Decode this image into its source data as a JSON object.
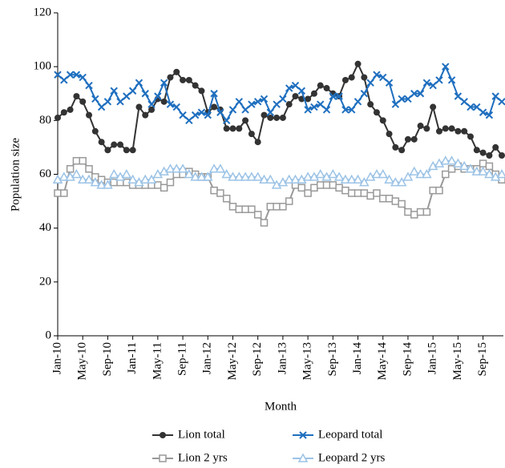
{
  "chart_data": {
    "type": "line",
    "x_label": "Month",
    "y_label": "Population size",
    "categories": [
      "Jan-10",
      null,
      null,
      null,
      "May-10",
      null,
      null,
      null,
      "Sep-10",
      null,
      null,
      null,
      "Jan-11",
      null,
      null,
      null,
      "May-11",
      null,
      null,
      null,
      "Sep-11",
      null,
      null,
      null,
      "Jan-12",
      null,
      null,
      null,
      "May-12",
      null,
      null,
      null,
      "Sep-12",
      null,
      null,
      null,
      "Jan-13",
      null,
      null,
      null,
      "May-13",
      null,
      null,
      null,
      "Sep-13",
      null,
      null,
      null,
      "Jan-14",
      null,
      null,
      null,
      "May-14",
      null,
      null,
      null,
      "Sep-14",
      null,
      null,
      null,
      "Jan-15",
      null,
      null,
      null,
      "May-15",
      null,
      null,
      null,
      "Sep-15",
      null,
      null,
      null
    ],
    "ylim": [
      0,
      120
    ],
    "yticks": [
      0,
      20,
      40,
      60,
      80,
      100,
      120
    ],
    "series": [
      {
        "name": "Lion total",
        "color": "#333333",
        "marker": "circle",
        "values": [
          81,
          83,
          84,
          89,
          87,
          82,
          76,
          72,
          69,
          71,
          71,
          69,
          69,
          85,
          82,
          84,
          88,
          87,
          96,
          98,
          95,
          95,
          93,
          91,
          83,
          85,
          84,
          77,
          77,
          77,
          80,
          75,
          72,
          82,
          81,
          81,
          81,
          86,
          89,
          88,
          88,
          90,
          93,
          92,
          90,
          89,
          95,
          96,
          101,
          96,
          86,
          83,
          80,
          75,
          70,
          69,
          73,
          73,
          78,
          77,
          85,
          76,
          77,
          77,
          76,
          76,
          74,
          69,
          68,
          67,
          70,
          67
        ]
      },
      {
        "name": "Lion 2 yrs",
        "color": "#999999",
        "marker": "square",
        "values": [
          53,
          53,
          62,
          65,
          65,
          62,
          59,
          58,
          57,
          57,
          57,
          57,
          56,
          56,
          56,
          56,
          56,
          55,
          57,
          60,
          60,
          61,
          60,
          59,
          59,
          54,
          53,
          51,
          48,
          47,
          47,
          47,
          45,
          42,
          48,
          48,
          48,
          50,
          56,
          55,
          53,
          55,
          56,
          56,
          56,
          55,
          54,
          53,
          53,
          53,
          52,
          53,
          51,
          51,
          50,
          49,
          46,
          45,
          46,
          46,
          54,
          54,
          60,
          62,
          63,
          62,
          62,
          62,
          64,
          63,
          60,
          58
        ]
      },
      {
        "name": "Leopard total",
        "color": "#1f6fbf",
        "marker": "x",
        "values": [
          97,
          95,
          97,
          97,
          96,
          93,
          88,
          85,
          87,
          91,
          87,
          89,
          91,
          94,
          90,
          86,
          89,
          94,
          86,
          85,
          82,
          80,
          82,
          83,
          82,
          90,
          83,
          80,
          84,
          87,
          84,
          86,
          87,
          88,
          83,
          86,
          88,
          92,
          93,
          91,
          84,
          85,
          86,
          84,
          89,
          89,
          84,
          84,
          87,
          90,
          94,
          97,
          96,
          94,
          86,
          88,
          88,
          90,
          90,
          94,
          93,
          95,
          100,
          95,
          89,
          87,
          85,
          85,
          83,
          82,
          89,
          87
        ]
      },
      {
        "name": "Leopard 2 yrs",
        "color": "#9cc3e6",
        "marker": "triangle",
        "values": [
          58,
          59,
          59,
          60,
          58,
          58,
          57,
          56,
          56,
          60,
          59,
          60,
          58,
          57,
          58,
          58,
          60,
          61,
          62,
          62,
          62,
          60,
          59,
          59,
          59,
          62,
          62,
          60,
          59,
          59,
          59,
          59,
          59,
          58,
          58,
          56,
          57,
          58,
          58,
          58,
          59,
          59,
          60,
          59,
          60,
          59,
          58,
          58,
          58,
          57,
          59,
          60,
          60,
          58,
          57,
          57,
          59,
          61,
          60,
          60,
          63,
          64,
          65,
          65,
          64,
          63,
          62,
          61,
          61,
          60,
          59,
          60
        ]
      }
    ]
  }
}
